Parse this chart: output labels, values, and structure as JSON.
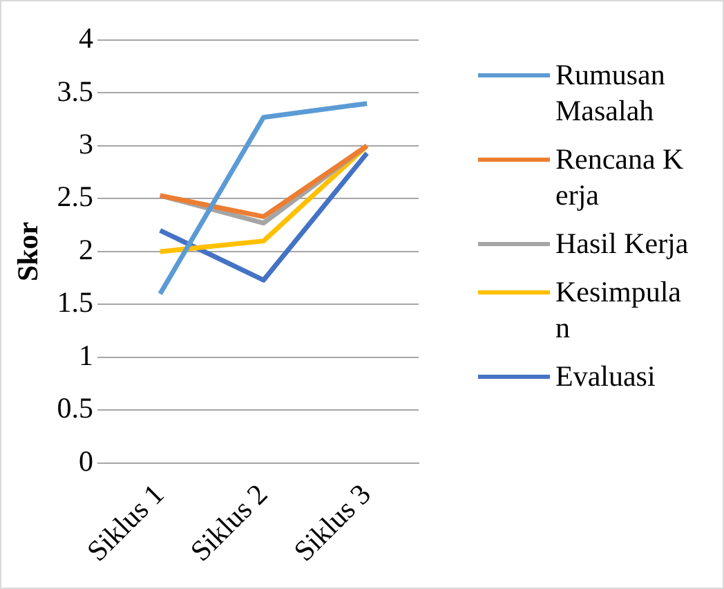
{
  "chart_data": {
    "type": "line",
    "ylabel": "Skor",
    "categories": [
      "Siklus 1",
      "Siklus 2",
      "Siklus 3"
    ],
    "series": [
      {
        "name": "Rumusan Masalah",
        "color": "#5b9bd5",
        "values": [
          1.6,
          3.27,
          3.4
        ]
      },
      {
        "name": "Rencana Kerja",
        "color": "#ed7d31",
        "values": [
          2.53,
          2.33,
          3.0
        ]
      },
      {
        "name": "Hasil Kerja",
        "color": "#a5a5a5",
        "values": [
          2.53,
          2.27,
          3.0
        ]
      },
      {
        "name": "Kesimpulan",
        "color": "#ffc000",
        "values": [
          2.0,
          2.1,
          3.0
        ]
      },
      {
        "name": "Evaluasi",
        "color": "#4472c4",
        "values": [
          2.2,
          1.73,
          2.93
        ]
      }
    ],
    "ylim": [
      0,
      4
    ],
    "yticks": [
      0,
      0.5,
      1,
      1.5,
      2,
      2.5,
      3,
      3.5,
      4
    ],
    "grid": "y",
    "legend": "right",
    "marker": "none",
    "line_style": "solid"
  }
}
